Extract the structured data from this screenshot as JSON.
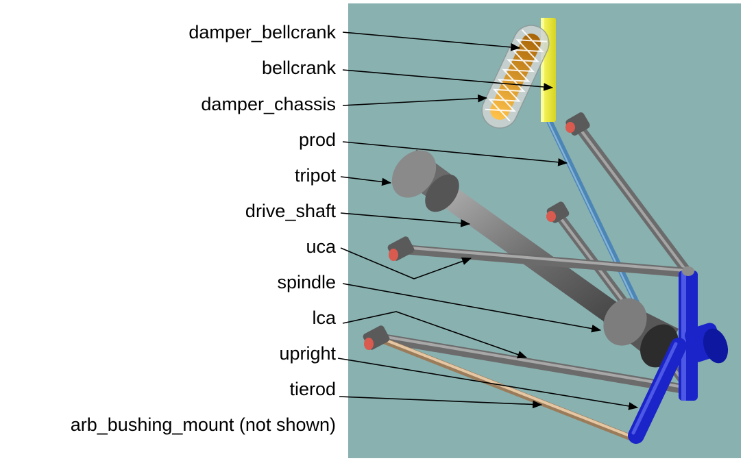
{
  "colors": {
    "background": "#89b1b0",
    "rod_grey": "#7c7c7c",
    "bushing_red": "#d95a4e",
    "bellcrank_yellow": "#f3f13a",
    "prod_blue": "#4c86b6",
    "upright_blue": "#1a24c8",
    "tierod_tan": "#e6c7a4",
    "damper_orange": "#d28b18"
  },
  "labels": [
    {
      "id": "damper_bellcrank",
      "text": "damper_bellcrank"
    },
    {
      "id": "bellcrank",
      "text": "bellcrank"
    },
    {
      "id": "damper_chassis",
      "text": "damper_chassis"
    },
    {
      "id": "prod",
      "text": "prod"
    },
    {
      "id": "tripot",
      "text": "tripot"
    },
    {
      "id": "drive_shaft",
      "text": "drive_shaft"
    },
    {
      "id": "uca",
      "text": "uca"
    },
    {
      "id": "spindle",
      "text": "spindle"
    },
    {
      "id": "lca",
      "text": "lca"
    },
    {
      "id": "upright",
      "text": "upright"
    },
    {
      "id": "tierod",
      "text": "tierod"
    },
    {
      "id": "arb_bushing_mount",
      "text": "arb_bushing_mount (not shown)"
    }
  ]
}
